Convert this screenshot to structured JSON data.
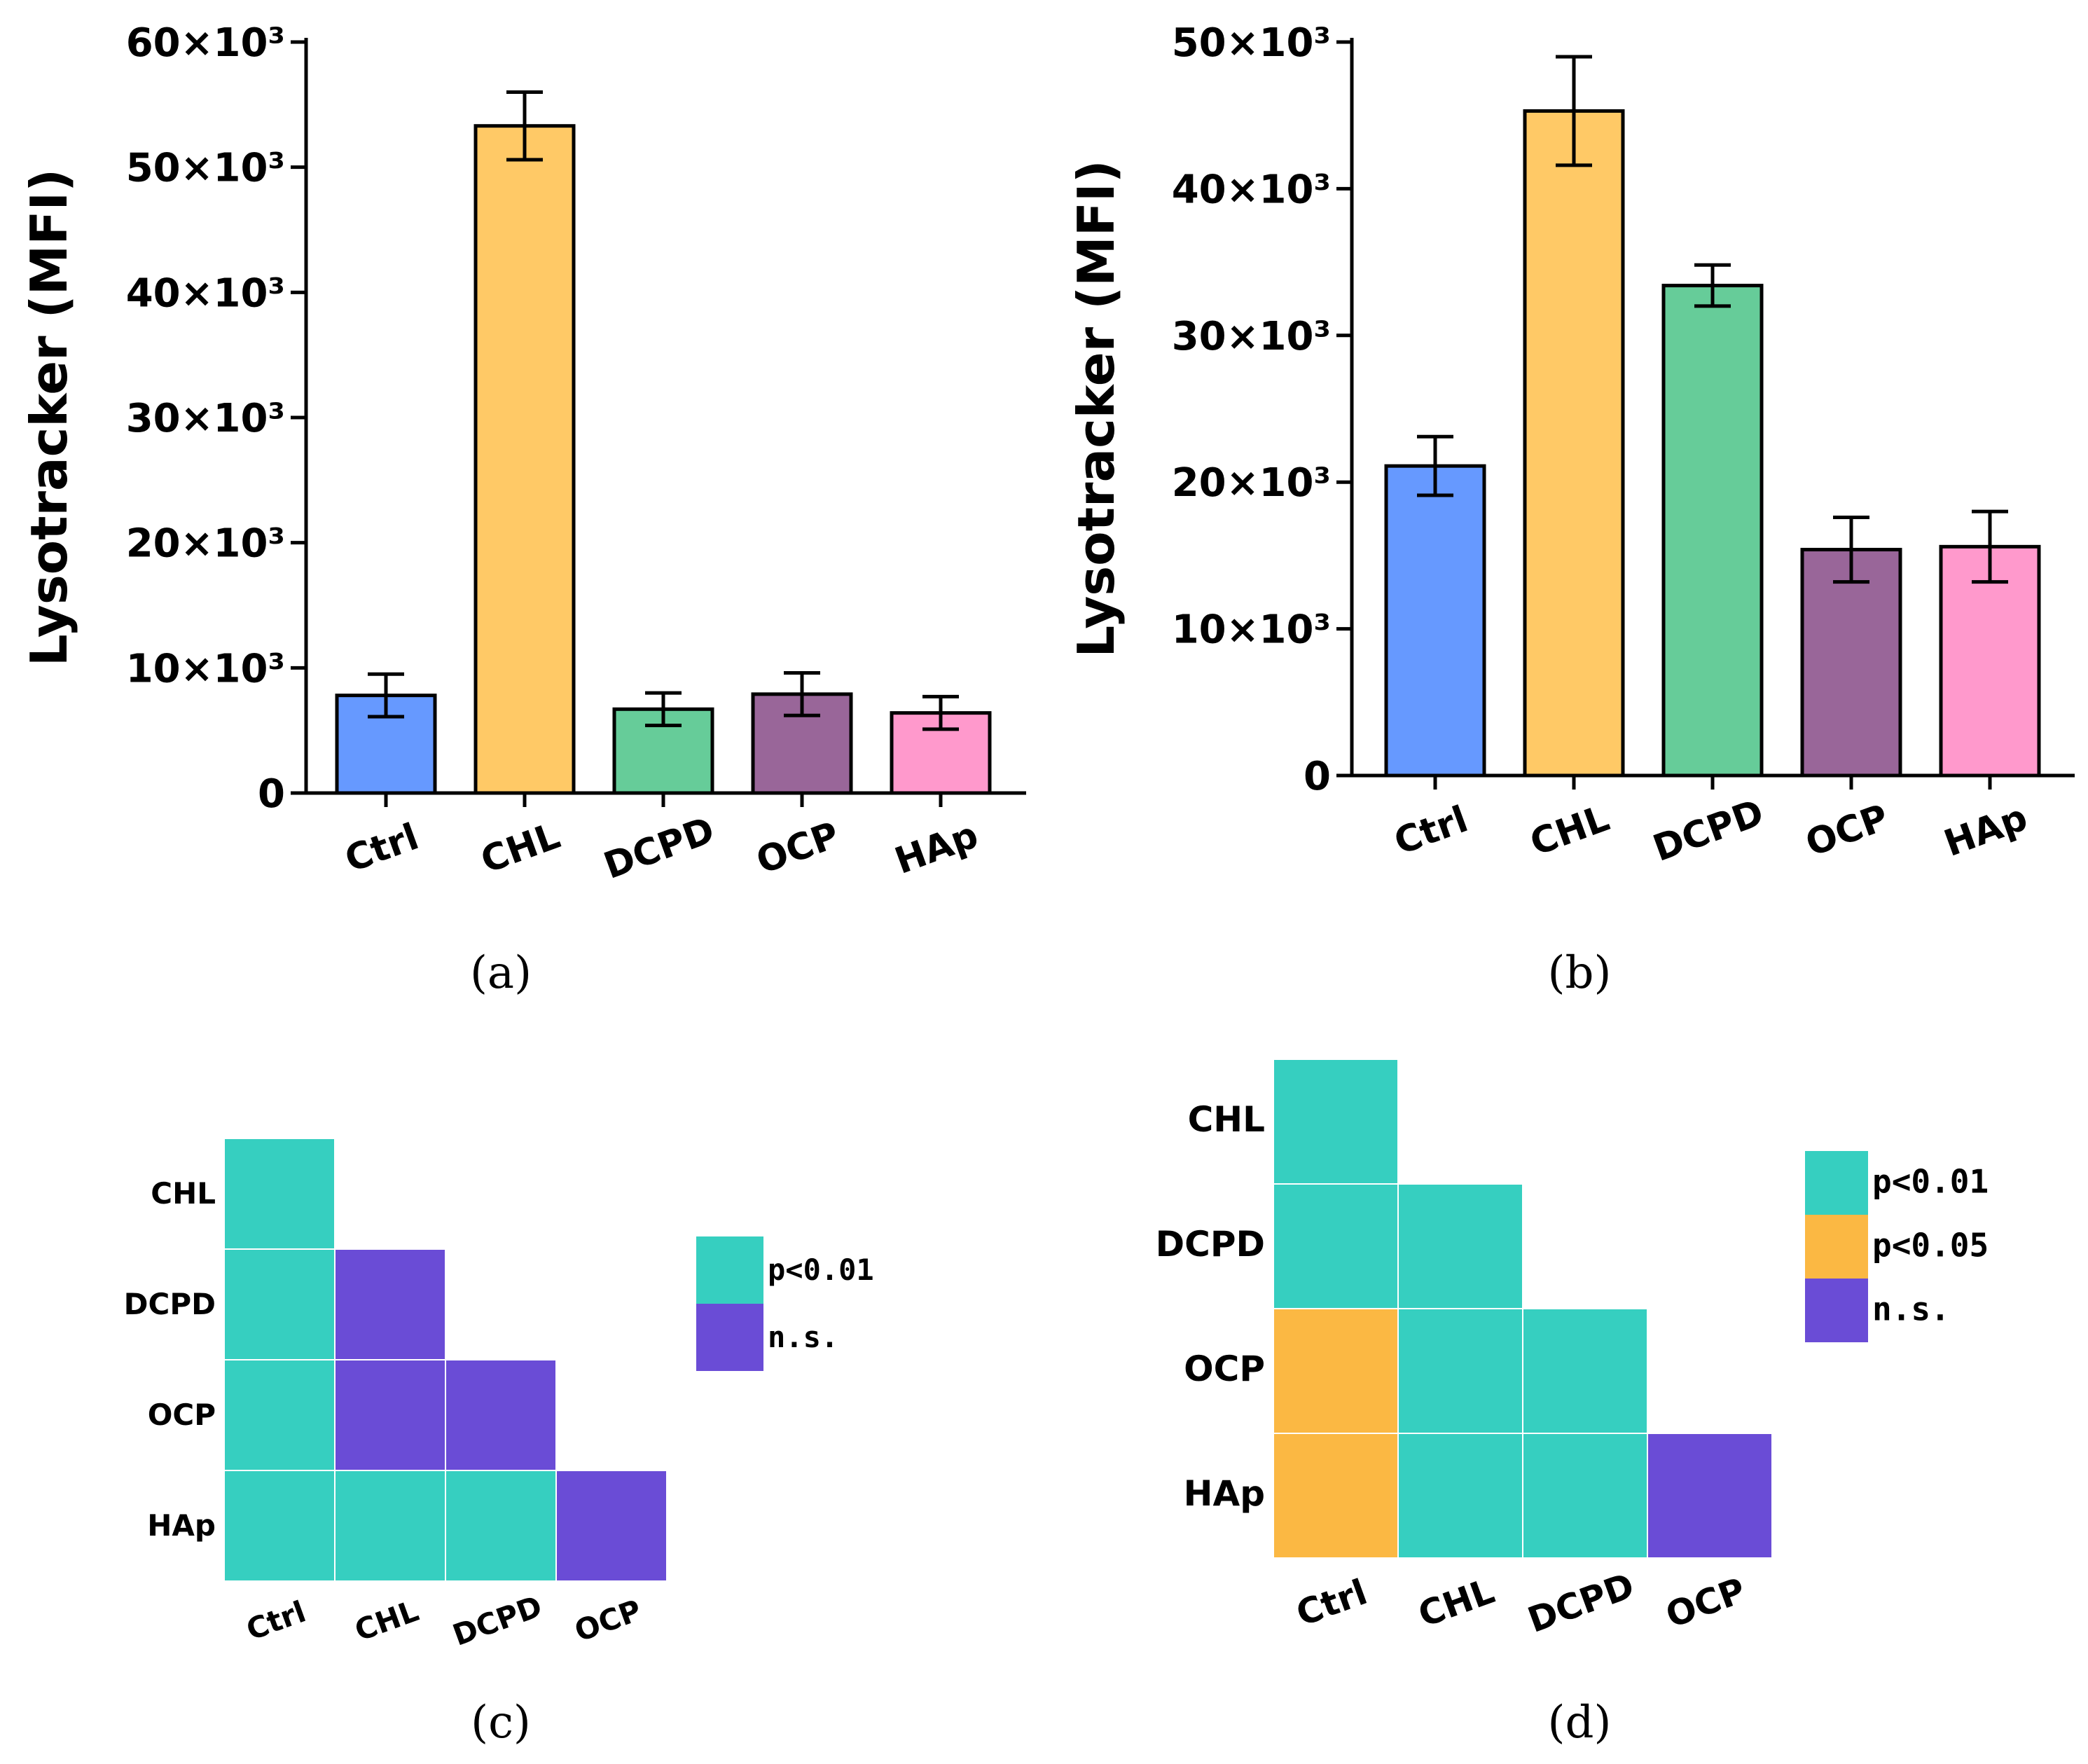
{
  "chart_data": [
    {
      "panel": "(a)",
      "type": "bar",
      "categories": [
        "Ctrl",
        "CHL",
        "DCPD",
        "OCP",
        "HAp"
      ],
      "values": [
        7800,
        53300,
        6700,
        7900,
        6400
      ],
      "errors": [
        1700,
        2700,
        1300,
        1700,
        1300
      ],
      "colors": [
        "#6699ff",
        "#ffc966",
        "#66cc99",
        "#996699",
        "#ff99cc"
      ],
      "ylabel": "Lysotracker (MFI)",
      "ylim": [
        0,
        60000
      ],
      "yticks": [
        0,
        10000,
        20000,
        30000,
        40000,
        50000,
        60000
      ],
      "ytick_labels": [
        "0",
        "10×10³",
        "20×10³",
        "30×10³",
        "40×10³",
        "50×10³",
        "60×10³"
      ]
    },
    {
      "panel": "(b)",
      "type": "bar",
      "categories": [
        "Ctrl",
        "CHL",
        "DCPD",
        "OCP",
        "HAp"
      ],
      "values": [
        21100,
        45300,
        33400,
        15400,
        15600
      ],
      "errors": [
        2000,
        3700,
        1400,
        2200,
        2400
      ],
      "colors": [
        "#6699ff",
        "#ffc966",
        "#66cc99",
        "#996699",
        "#ff99cc"
      ],
      "ylabel": "Lysotracker (MFI)",
      "ylim": [
        0,
        50000
      ],
      "yticks": [
        0,
        10000,
        20000,
        30000,
        40000,
        50000
      ],
      "ytick_labels": [
        "0",
        "10×10³",
        "20×10³",
        "30×10³",
        "40×10³",
        "50×10³"
      ]
    },
    {
      "panel": "(c)",
      "type": "heatmap",
      "rows": [
        "CHL",
        "DCPD",
        "OCP",
        "HAp"
      ],
      "cols": [
        "Ctrl",
        "CHL",
        "DCPD",
        "OCP"
      ],
      "cells": [
        [
          "p<0.01",
          null,
          null,
          null
        ],
        [
          "p<0.01",
          "n.s.",
          null,
          null
        ],
        [
          "p<0.01",
          "n.s.",
          "n.s.",
          null
        ],
        [
          "p<0.01",
          "p<0.01",
          "p<0.01",
          "n.s."
        ]
      ],
      "legend": [
        {
          "label": "p<0.01",
          "color": "#36cfc0"
        },
        {
          "label": "n.s.",
          "color": "#6a4cd6"
        }
      ]
    },
    {
      "panel": "(d)",
      "type": "heatmap",
      "rows": [
        "CHL",
        "DCPD",
        "OCP",
        "HAp"
      ],
      "cols": [
        "Ctrl",
        "CHL",
        "DCPD",
        "OCP"
      ],
      "cells": [
        [
          "p<0.01",
          null,
          null,
          null
        ],
        [
          "p<0.01",
          "p<0.01",
          null,
          null
        ],
        [
          "p<0.05",
          "p<0.01",
          "p<0.01",
          null
        ],
        [
          "p<0.05",
          "p<0.01",
          "p<0.01",
          "n.s."
        ]
      ],
      "legend": [
        {
          "label": "p<0.01",
          "color": "#36cfc0"
        },
        {
          "label": "p<0.05",
          "color": "#fbb843"
        },
        {
          "label": "n.s.",
          "color": "#6a4cd6"
        }
      ]
    }
  ]
}
